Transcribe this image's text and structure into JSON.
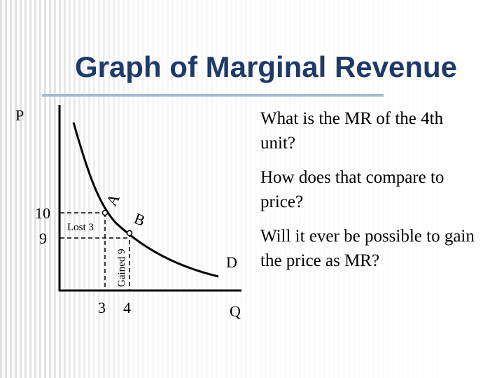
{
  "title": "Graph of Marginal Revenue",
  "graph": {
    "y_axis_label": "P",
    "x_axis_label": "Q",
    "curve_label": "D",
    "y_ticks": [
      "10",
      "9"
    ],
    "x_ticks": [
      "3",
      "4"
    ],
    "point_a": "A",
    "point_b": "B",
    "lost": "Lost 3",
    "gained": "Gained 9"
  },
  "questions": [
    "What is the MR of the 4th unit?",
    "How does that compare to price?",
    "Will it ever be possible to gain the price as MR?"
  ]
}
